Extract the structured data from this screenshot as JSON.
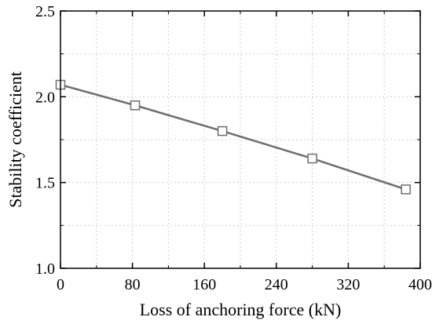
{
  "chart_data": {
    "type": "line",
    "title": "",
    "xlabel": "Loss of anchoring force (kN)",
    "ylabel": "Stability coefficient",
    "xlim": [
      0,
      400
    ],
    "ylim": [
      1.0,
      2.5
    ],
    "xticks": [
      0,
      80,
      160,
      240,
      320,
      400
    ],
    "yticks": [
      1.0,
      1.5,
      2.0,
      2.5
    ],
    "xtick_labels": [
      "0",
      "80",
      "160",
      "240",
      "320",
      "400"
    ],
    "ytick_labels": [
      "1.0",
      "1.5",
      "2.0",
      "2.5"
    ],
    "grid": true,
    "legend": "none",
    "series": [
      {
        "x": [
          0,
          83,
          180,
          280,
          384
        ],
        "y": [
          2.07,
          1.95,
          1.8,
          1.64,
          1.46
        ],
        "color": "#6e6e6e",
        "marker": "square"
      }
    ]
  }
}
